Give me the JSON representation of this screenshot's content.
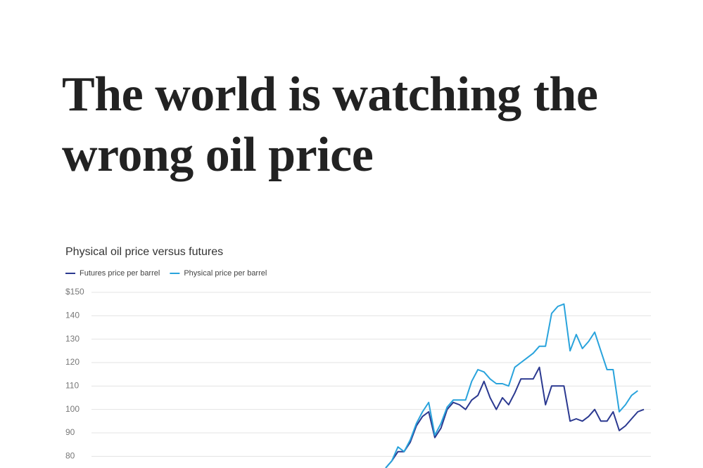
{
  "header": {
    "title": "The world is watching the wrong oil price"
  },
  "chart_data": {
    "type": "line",
    "title": "Physical oil price versus futures",
    "categories": [
      null,
      null,
      null,
      null,
      null,
      null,
      null,
      null,
      null,
      null,
      null,
      null,
      null,
      null,
      null,
      null,
      null,
      null,
      null,
      null,
      null,
      null,
      null,
      null,
      null,
      null,
      null,
      null,
      null,
      null,
      null,
      null,
      null,
      null,
      null,
      null,
      null,
      null,
      null,
      null,
      null,
      null,
      null
    ],
    "series": [
      {
        "name": "Futures price per barrel",
        "color": "#2b3990",
        "values": [
          75,
          78,
          82,
          82,
          86,
          93,
          97,
          99,
          88,
          92,
          100,
          103,
          102,
          100,
          104,
          106,
          112,
          105,
          100,
          105,
          102,
          107,
          113,
          113,
          113,
          118,
          102,
          110,
          110,
          110,
          95,
          96,
          95,
          97,
          100,
          95,
          95,
          99,
          91,
          93,
          96,
          99,
          100
        ]
      },
      {
        "name": "Physical price per barrel",
        "color": "#29a3dc",
        "values": [
          75,
          78,
          84,
          82,
          87,
          94,
          99,
          103,
          89,
          94,
          101,
          104,
          104,
          104,
          112,
          117,
          116,
          113,
          111,
          111,
          110,
          118,
          120,
          122,
          124,
          127,
          127,
          141,
          144,
          145,
          125,
          132,
          126,
          129,
          133,
          125,
          117,
          117,
          99,
          102,
          106,
          108,
          null
        ]
      }
    ],
    "ylim": [
      75,
      150
    ],
    "yticks": [
      {
        "value": 150,
        "label": "$150"
      },
      140,
      130,
      120,
      110,
      100,
      90,
      80
    ],
    "grid": true,
    "legend": "top-left"
  }
}
